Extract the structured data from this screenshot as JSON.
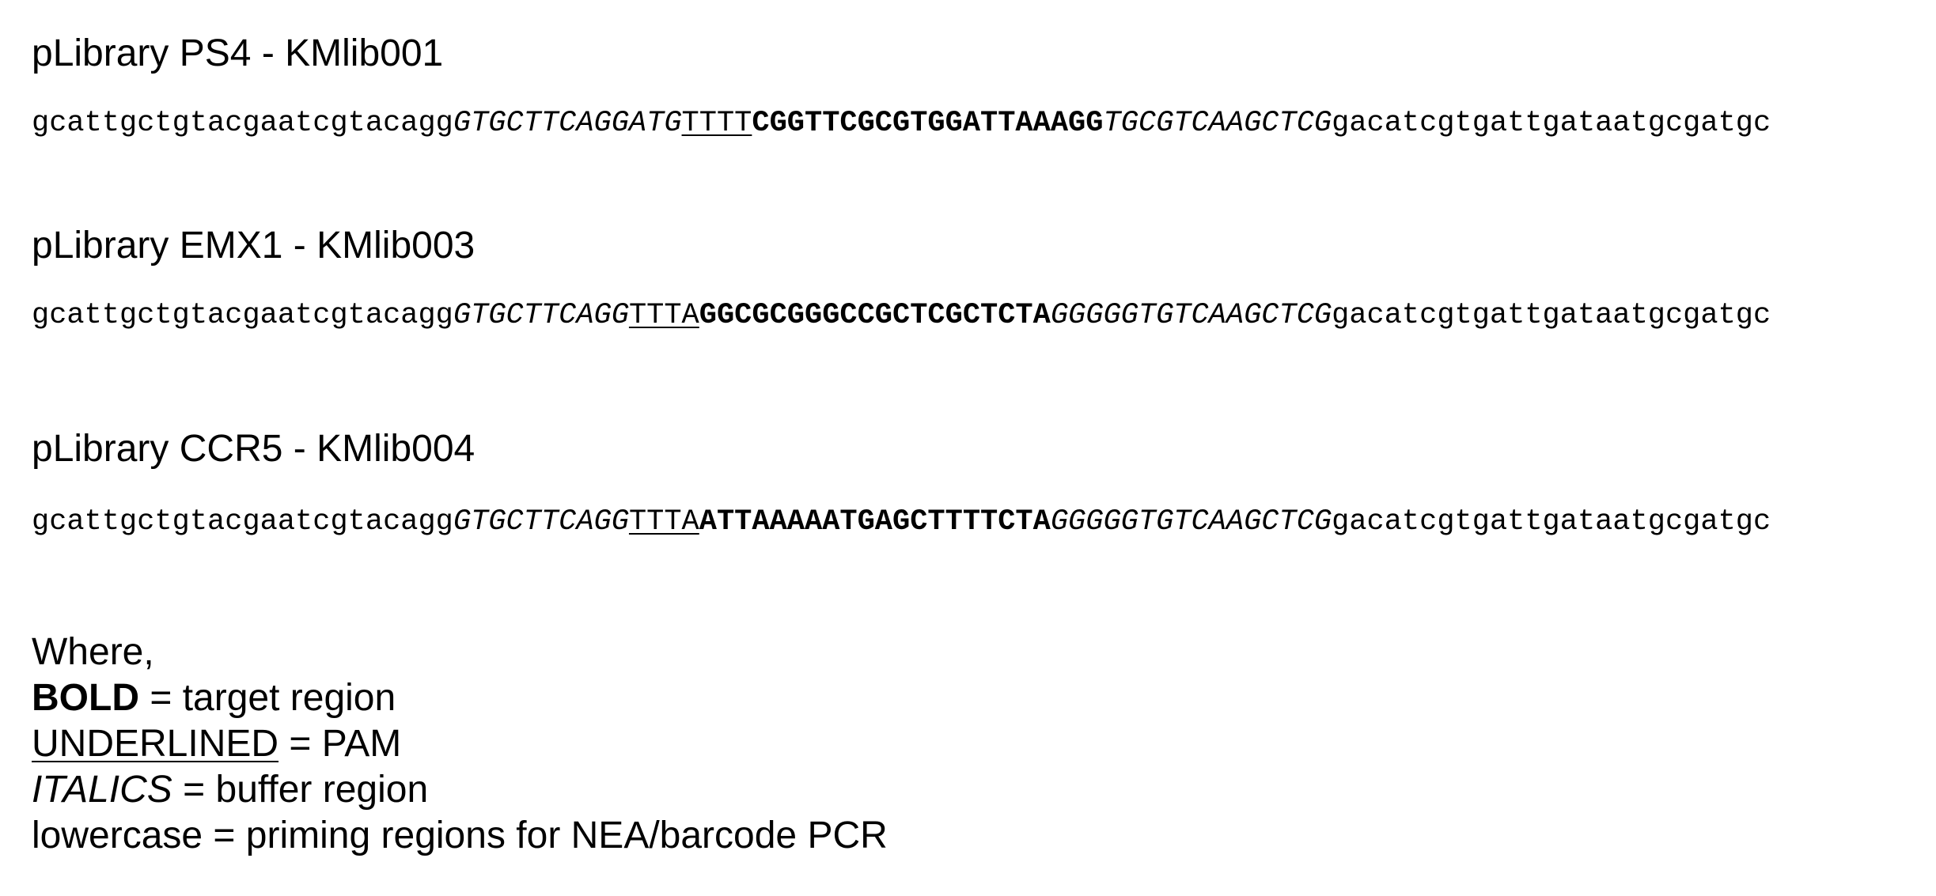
{
  "libraries": [
    {
      "title": "pLibrary PS4 - KMlib001",
      "segments": {
        "primer_5": "gcattgctgtacgaatcgtacagg",
        "buffer_5": "GTGCTTCAGGATG",
        "pam": "TTTT",
        "target": "CGGTTCGCGTGGATTAAAGG",
        "buffer_3": "TGCGTCAAGCTCG",
        "primer_3": "gacatcgtgattgataatgcgatgc"
      }
    },
    {
      "title": "pLibrary EMX1 - KMlib003",
      "segments": {
        "primer_5": "gcattgctgtacgaatcgtacagg",
        "buffer_5": "GTGCTTCAGG",
        "pam": "TTTA",
        "target": "GGCGCGGGCCGCTCGCTCTA",
        "buffer_3": "GGGGGTGTCAAGCTCG",
        "primer_3": "gacatcgtgattgataatgcgatgc"
      }
    },
    {
      "title": "pLibrary CCR5 - KMlib004",
      "segments": {
        "primer_5": "gcattgctgtacgaatcgtacagg",
        "buffer_5": "GTGCTTCAGG",
        "pam": "TTTA",
        "target": "ATTAAAAATGAGCTTTTCTA",
        "buffer_3": "GGGGGTGTCAAGCTCG",
        "primer_3": "gacatcgtgattgataatgcgatgc"
      }
    }
  ],
  "legend": {
    "intro": "Where,",
    "bold_key": "BOLD",
    "bold_desc": " = target region",
    "underline_key": "UNDERLINED",
    "underline_desc": " = PAM",
    "italic_key": "ITALICS",
    "italic_desc": " = buffer region",
    "lowercase_line": "lowercase = priming regions for NEA/barcode PCR"
  }
}
